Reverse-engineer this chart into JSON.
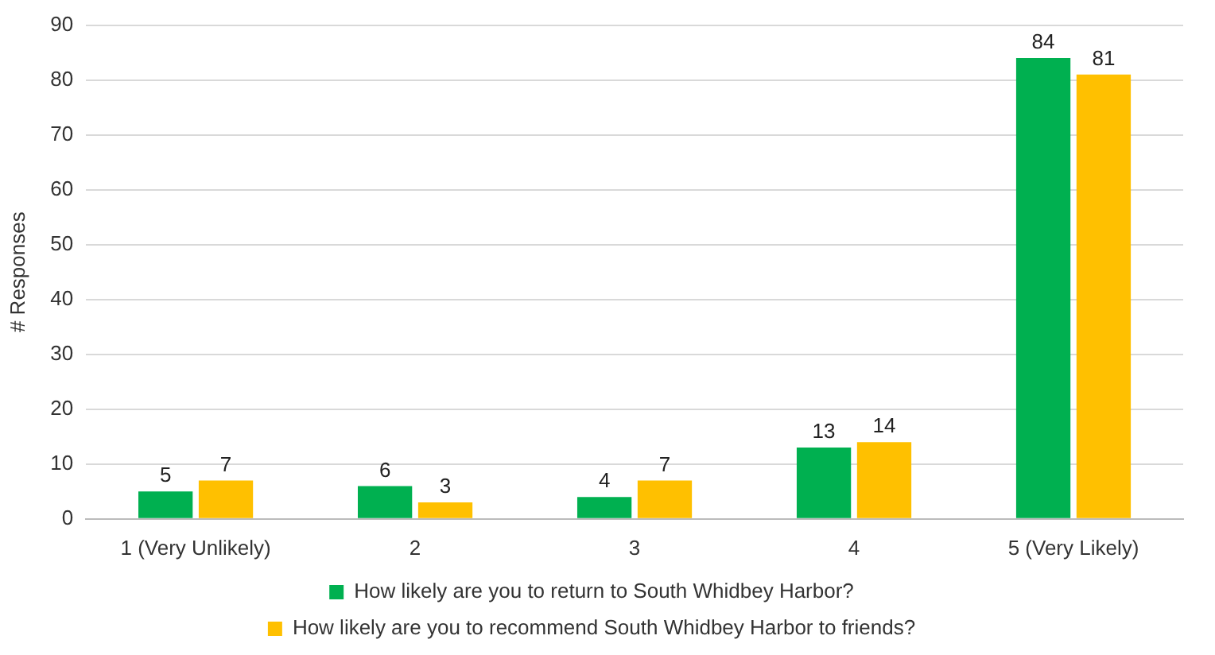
{
  "chart_data": {
    "type": "bar",
    "ylabel": "# Responses",
    "categories": [
      "1 (Very Unlikely)",
      "2",
      "3",
      "4",
      "5 (Very Likely)"
    ],
    "series": [
      {
        "name": "How likely are you to return to South Whidbey Harbor?",
        "color": "#00b050",
        "values": [
          5,
          6,
          4,
          13,
          84
        ]
      },
      {
        "name": "How likely are you to recommend South Whidbey Harbor to friends?",
        "color": "#ffc000",
        "values": [
          7,
          3,
          7,
          14,
          81
        ]
      }
    ],
    "ylim": [
      0,
      90
    ],
    "yticks": [
      0,
      10,
      20,
      30,
      40,
      50,
      60,
      70,
      80,
      90
    ],
    "grid": "y",
    "legend": "bottom",
    "data_labels": true
  }
}
